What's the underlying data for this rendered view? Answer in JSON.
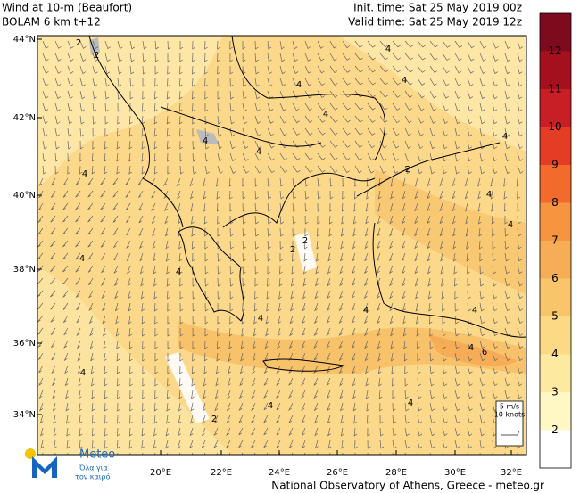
{
  "header": {
    "title": "Wind at 10-m (Beaufort)",
    "model": "BOLAM 6 km t+12",
    "init": "Init. time: Sat 25 May 2019 00z",
    "valid": "Valid time: Sat 25 May 2019 12z"
  },
  "lat_labels": [
    "44°N",
    "42°N",
    "40°N",
    "38°N",
    "36°N",
    "34°N"
  ],
  "lon_labels": [
    "20°E",
    "22°E",
    "24°E",
    "26°E",
    "28°E",
    "30°E",
    "32°E"
  ],
  "colorbar_labels": [
    "2",
    "3",
    "4",
    "5",
    "6",
    "7",
    "8",
    "9",
    "10",
    "11",
    "12"
  ],
  "barb_legend": {
    "speed": "5 m/s",
    "knots": "10 knots"
  },
  "contour_labels": [
    "2",
    "2",
    "4",
    "4",
    "4",
    "4",
    "4",
    "4",
    "2",
    "4",
    "4",
    "4",
    "2",
    "2",
    "4",
    "4",
    "4",
    "4",
    "4",
    "6",
    "4",
    "4",
    "4",
    "2",
    "4",
    "4"
  ],
  "logo": {
    "name": "Meteo",
    "tagline_1": "Όλα για",
    "tagline_2": "τον καιρό"
  },
  "footer": "National Observatory of Athens, Greece - meteo.gr"
}
